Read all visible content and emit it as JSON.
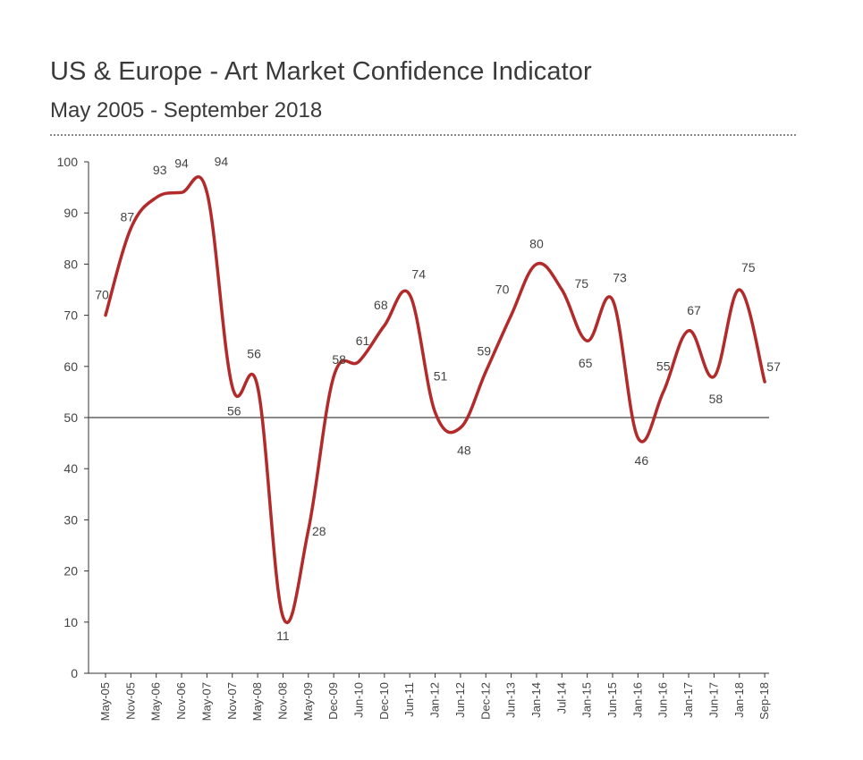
{
  "chart_data": {
    "type": "line",
    "title": "US & Europe - Art Market Confidence Indicator",
    "subtitle": "May 2005 - September 2018",
    "xlabel": "",
    "ylabel": "",
    "ylim": [
      0,
      100
    ],
    "yticks": [
      0,
      10,
      20,
      30,
      40,
      50,
      60,
      70,
      80,
      90,
      100
    ],
    "reference_line": 50,
    "grid": false,
    "categories": [
      "May-05",
      "Nov-05",
      "May-06",
      "Nov-06",
      "May-07",
      "Nov-07",
      "May-08",
      "Nov-08",
      "May-09",
      "Dec-09",
      "Jun-10",
      "Dec-10",
      "Jun-11",
      "Jan-12",
      "Jun-12",
      "Dec-12",
      "Jun-13",
      "Jan-14",
      "Jul-14",
      "Jan-15",
      "Jun-15",
      "Jan-16",
      "Jun-16",
      "Jan-17",
      "Jun-17",
      "Jan-18",
      "Sep-18"
    ],
    "series": [
      {
        "name": "Art Market Confidence Indicator",
        "color": "#b22a2a",
        "values": [
          70,
          87,
          93,
          94,
          94,
          56,
          56,
          11,
          28,
          58,
          61,
          68,
          74,
          51,
          48,
          59,
          70,
          80,
          75,
          65,
          73,
          46,
          55,
          67,
          58,
          75,
          57
        ],
        "labels": [
          "70",
          "87",
          "93",
          "94",
          "94",
          "56",
          "56",
          "11",
          "28",
          "58",
          "61",
          "68",
          "74",
          "51",
          "48",
          "59",
          "70",
          "80",
          "75",
          "65",
          "73",
          "46",
          "55",
          "67",
          "58",
          "75",
          "57"
        ]
      }
    ]
  }
}
